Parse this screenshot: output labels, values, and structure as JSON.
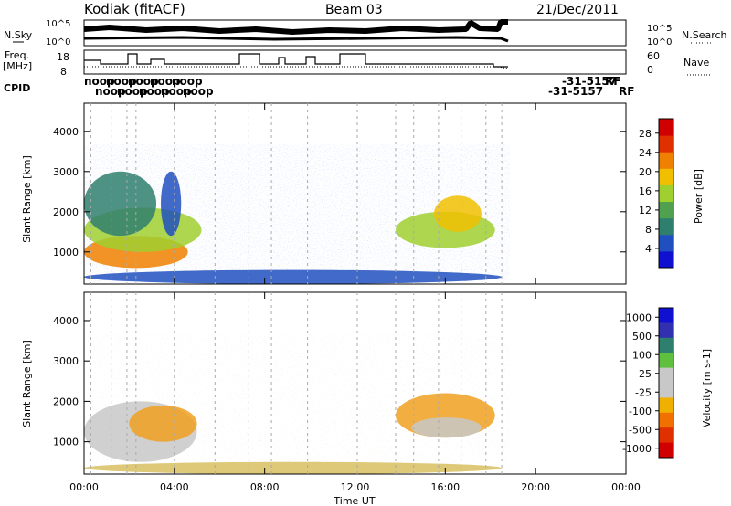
{
  "header": {
    "station": "Kodiak (fitACF)",
    "beam": "Beam 03",
    "date": "21/Dec/2011"
  },
  "top_panels": {
    "nsky_label": "N.Sky",
    "nsearch_label": "N.Search",
    "nsky_ticks": [
      "10^5",
      "10^0"
    ],
    "nsearch_ticks": [
      "10^5",
      "10^0"
    ],
    "freq_label_line1": "Freq.",
    "freq_label_line2": "[MHz]",
    "freq_ticks": [
      "18",
      "8"
    ],
    "nave_label": "Nave",
    "nave_ticks": [
      "60",
      "0"
    ],
    "cpid_label": "CPID",
    "cpid_strings": [
      "noop",
      "noop",
      "noop",
      "noop",
      "noop",
      "noop",
      "noop",
      "noop",
      "noop",
      "noop"
    ],
    "rf_marks": [
      "RF",
      "RF"
    ],
    "cpid_tail": "-31-5157",
    "cpid_tail2": "-31-5157"
  },
  "colors": {
    "power_scale": [
      "#1010d0",
      "#2050c0",
      "#2f7f6f",
      "#4fa04f",
      "#a0d030",
      "#f0c000",
      "#f08000",
      "#e03000",
      "#d00000"
    ],
    "velocity_scale": [
      "#1010d0",
      "#3030b0",
      "#2f7f6f",
      "#5fc03f",
      "#c8c8c8",
      "#c8c8c8",
      "#f0b000",
      "#f07000",
      "#e03000",
      "#d00000"
    ]
  },
  "chart_data": [
    {
      "type": "heatmap",
      "name": "Power",
      "ylabel": "Slant Range [km]",
      "xlim": [
        "00:00",
        "24:00"
      ],
      "ylim": [
        200,
        4700
      ],
      "yticks": [
        1000,
        2000,
        3000,
        4000
      ],
      "colorbar_label": "Power [dB]",
      "colorbar_ticks": [
        4,
        8,
        12,
        16,
        20,
        24,
        28
      ],
      "colorbar_range": [
        0,
        31
      ],
      "data_blobs": [
        {
          "t0": 0.0,
          "t1": 4.6,
          "r0": 600,
          "r1": 1400,
          "level": 24
        },
        {
          "t0": 0.0,
          "t1": 5.2,
          "r0": 1000,
          "r1": 2100,
          "level": 16
        },
        {
          "t0": 0.0,
          "t1": 3.2,
          "r0": 1400,
          "r1": 3000,
          "level": 9
        },
        {
          "t0": 3.4,
          "t1": 4.3,
          "r0": 1400,
          "r1": 3000,
          "level": 6
        },
        {
          "t0": 13.8,
          "t1": 18.2,
          "r0": 1100,
          "r1": 2000,
          "level": 15
        },
        {
          "t0": 15.5,
          "t1": 17.6,
          "r0": 1500,
          "r1": 2400,
          "level": 20
        },
        {
          "t0": 0.0,
          "t1": 18.5,
          "r0": 200,
          "r1": 550,
          "level": 6
        }
      ]
    },
    {
      "type": "heatmap",
      "name": "Velocity",
      "ylabel": "Slant Range [km]",
      "xlabel": "Time UT",
      "xlim": [
        "00:00",
        "24:00"
      ],
      "ylim": [
        200,
        4700
      ],
      "yticks": [
        1000,
        2000,
        3000,
        4000
      ],
      "xticks": [
        "00:00",
        "04:00",
        "08:00",
        "12:00",
        "16:00",
        "20:00",
        "00:00"
      ],
      "colorbar_label": "Velocity [m s-1]",
      "colorbar_ticks": [
        1000,
        500,
        100,
        25,
        -25,
        -100,
        -500,
        -1000
      ],
      "data_blobs": [
        {
          "t0": 0.0,
          "t1": 5.0,
          "r0": 500,
          "r1": 2000,
          "level": "ground"
        },
        {
          "t0": 2.0,
          "t1": 5.0,
          "r0": 1000,
          "r1": 1900,
          "level": "-100"
        },
        {
          "t0": 13.8,
          "t1": 18.2,
          "r0": 1100,
          "r1": 2200,
          "level": "-100"
        },
        {
          "t0": 14.5,
          "t1": 17.6,
          "r0": 1100,
          "r1": 1600,
          "level": "ground"
        },
        {
          "t0": 0.0,
          "t1": 18.5,
          "r0": 200,
          "r1": 500,
          "level": "-25"
        }
      ]
    }
  ]
}
